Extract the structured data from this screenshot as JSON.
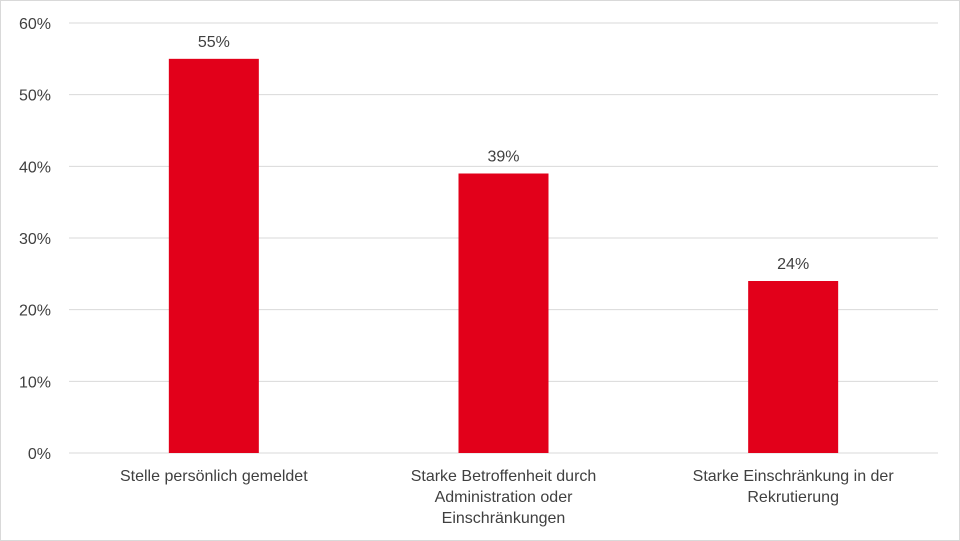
{
  "chart_data": {
    "type": "bar",
    "title": "",
    "xlabel": "",
    "ylabel": "",
    "categories": [
      [
        "Stelle persönlich gemeldet"
      ],
      [
        "Starke Betroffenheit durch",
        "Administration oder",
        "Einschränkungen"
      ],
      [
        "Starke Einschränkung in der",
        "Rekrutierung"
      ]
    ],
    "values": [
      55,
      39,
      24
    ],
    "value_labels": [
      "55%",
      "39%",
      "24%"
    ],
    "ylim": [
      0,
      60
    ],
    "yticks": [
      0,
      10,
      20,
      30,
      40,
      50,
      60
    ],
    "ytick_labels": [
      "0%",
      "10%",
      "20%",
      "30%",
      "40%",
      "50%",
      "60%"
    ],
    "grid": true,
    "legend": "none",
    "bar_color": "#e2001a"
  }
}
